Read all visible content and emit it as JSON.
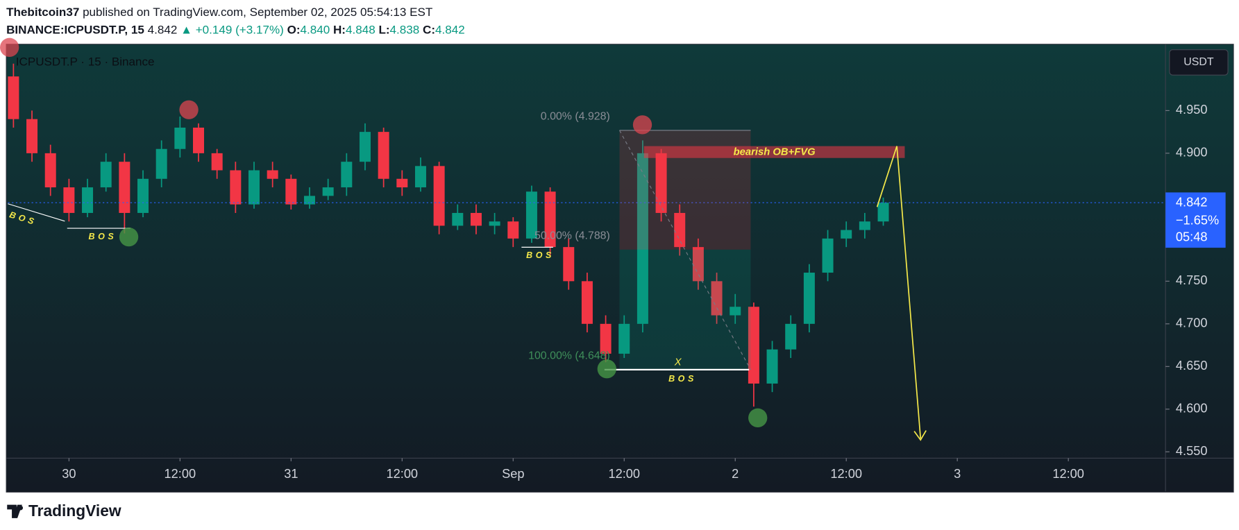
{
  "header": {
    "author": "Thebitcoin37",
    "published": "published on TradingView.com, September 02, 2025 05:54:13 EST",
    "symbol": "BINANCE:ICPUSDT.P, 15",
    "last": "4.842",
    "change": "+0.149 (+3.17%)",
    "ohlc": [
      {
        "label": "O:",
        "value": "4.840"
      },
      {
        "label": "H:",
        "value": "4.848"
      },
      {
        "label": "L:",
        "value": "4.838"
      },
      {
        "label": "C:",
        "value": "4.842"
      }
    ]
  },
  "chart_data": {
    "type": "candlestick",
    "legend": "ICPUSDT.P · 15 · Binance",
    "currency": "USDT",
    "up_color": "#089981",
    "down_color": "#f23645",
    "x": [
      -6,
      -4,
      -2,
      0,
      2,
      4,
      6,
      8,
      10,
      12,
      14,
      16,
      18,
      20,
      22,
      24,
      26,
      28,
      30,
      32,
      34,
      36,
      38,
      40,
      42,
      44,
      46,
      48,
      50,
      52,
      54,
      56,
      58,
      60,
      62,
      64,
      66,
      68,
      70,
      72,
      74,
      76,
      78,
      80,
      82,
      84,
      86,
      88
    ],
    "open": [
      4.99,
      4.94,
      4.9,
      4.86,
      4.83,
      4.86,
      4.89,
      4.83,
      4.87,
      4.905,
      4.93,
      4.9,
      4.88,
      4.84,
      4.88,
      4.87,
      4.84,
      4.85,
      4.86,
      4.89,
      4.925,
      4.87,
      4.86,
      4.885,
      4.815,
      4.83,
      4.815,
      4.82,
      4.8,
      4.855,
      4.79,
      4.75,
      4.7,
      4.665,
      4.7,
      4.9,
      4.83,
      4.79,
      4.75,
      4.71,
      4.72,
      4.63,
      4.67,
      4.7,
      4.76,
      4.8,
      4.81,
      4.82
    ],
    "high": [
      5.005,
      4.95,
      4.91,
      4.87,
      4.87,
      4.9,
      4.9,
      4.88,
      4.915,
      4.943,
      4.935,
      4.905,
      4.89,
      4.89,
      4.89,
      4.875,
      4.86,
      4.87,
      4.9,
      4.935,
      4.93,
      4.88,
      4.895,
      4.89,
      4.84,
      4.84,
      4.83,
      4.825,
      4.862,
      4.86,
      4.8,
      4.76,
      4.71,
      4.71,
      4.915,
      4.905,
      4.84,
      4.8,
      4.76,
      4.735,
      4.725,
      4.68,
      4.71,
      4.77,
      4.81,
      4.82,
      4.83,
      4.848
    ],
    "low": [
      4.93,
      4.89,
      4.85,
      4.82,
      4.825,
      4.855,
      4.806,
      4.825,
      4.86,
      4.895,
      4.89,
      4.87,
      4.83,
      4.835,
      4.86,
      4.834,
      4.835,
      4.845,
      4.85,
      4.88,
      4.86,
      4.85,
      4.855,
      4.805,
      4.81,
      4.805,
      4.805,
      4.79,
      4.795,
      4.78,
      4.74,
      4.69,
      4.655,
      4.66,
      4.69,
      4.82,
      4.78,
      4.74,
      4.7,
      4.7,
      4.603,
      4.62,
      4.66,
      4.69,
      4.75,
      4.79,
      4.8,
      4.815
    ],
    "close": [
      4.94,
      4.9,
      4.86,
      4.83,
      4.86,
      4.89,
      4.83,
      4.87,
      4.905,
      4.93,
      4.9,
      4.88,
      4.84,
      4.88,
      4.87,
      4.84,
      4.85,
      4.86,
      4.89,
      4.925,
      4.87,
      4.86,
      4.885,
      4.815,
      4.83,
      4.815,
      4.82,
      4.8,
      4.855,
      4.79,
      4.75,
      4.7,
      4.665,
      4.7,
      4.9,
      4.83,
      4.79,
      4.75,
      4.71,
      4.72,
      4.63,
      4.67,
      4.7,
      4.76,
      4.8,
      4.81,
      4.82,
      4.842
    ],
    "xlim": [
      -6.6,
      118.5
    ],
    "xticks": [
      {
        "value": 0,
        "label": "30"
      },
      {
        "value": 12,
        "label": "12:00"
      },
      {
        "value": 24,
        "label": "31"
      },
      {
        "value": 36,
        "label": "12:00"
      },
      {
        "value": 48,
        "label": "Sep"
      },
      {
        "value": 60,
        "label": "12:00"
      },
      {
        "value": 72,
        "label": "2"
      },
      {
        "value": 84,
        "label": "12:00"
      },
      {
        "value": 96,
        "label": "3"
      },
      {
        "value": 108,
        "label": "12:00"
      }
    ],
    "ylim": [
      4.5426,
      5.0259
    ],
    "yticks": [
      {
        "value": 4.95,
        "label": "4.950"
      },
      {
        "value": 4.9,
        "label": "4.900"
      },
      {
        "value": 4.75,
        "label": "4.750"
      },
      {
        "value": 4.7,
        "label": "4.700"
      },
      {
        "value": 4.65,
        "label": "4.650"
      },
      {
        "value": 4.6,
        "label": "4.600"
      },
      {
        "value": 4.55,
        "label": "4.550"
      }
    ],
    "last_price": 4.842,
    "last_change": "−1.65%",
    "countdown": "05:48",
    "annotations": {
      "bos": [
        "BOS",
        "BOS",
        "BOS",
        "BOS"
      ],
      "x_mark": "X",
      "zone": "bearish OB+FVG",
      "fib": [
        "0.00% (4.928)",
        "50.00% (4.788)",
        "100.00% (4.648)"
      ]
    }
  },
  "footer": {
    "brand": "TradingView"
  }
}
